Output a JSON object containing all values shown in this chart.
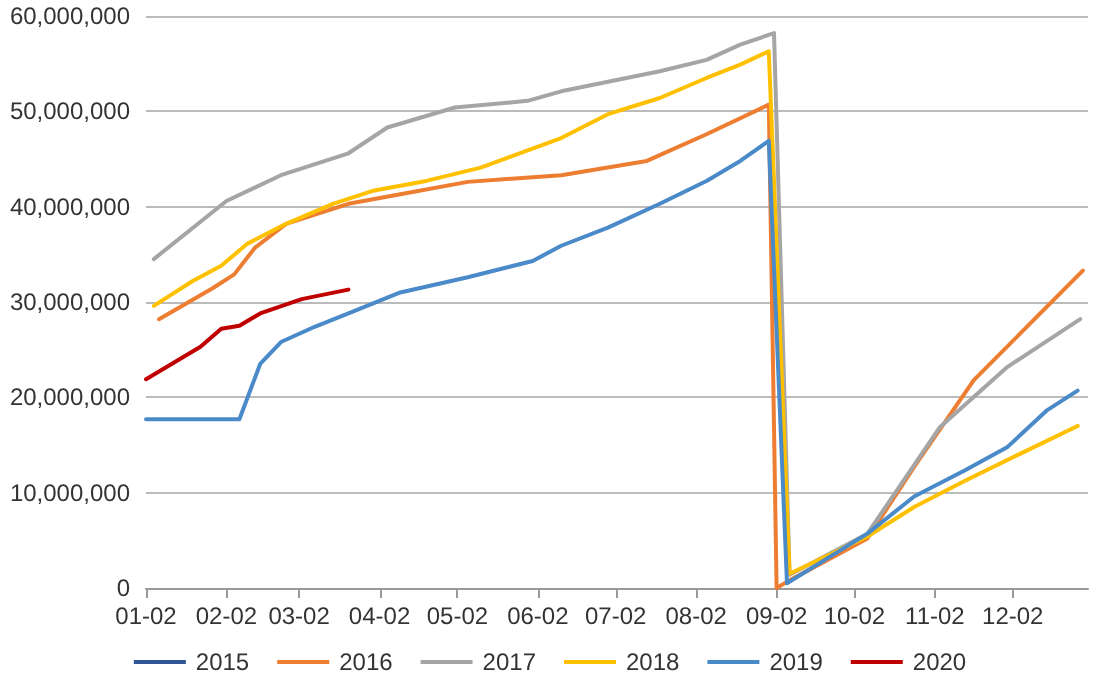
{
  "chart_data": {
    "type": "line",
    "xlim": [
      "--01-02",
      "--12-31"
    ],
    "xticks": [
      {
        "value": "--01-02",
        "label": "01-02"
      },
      {
        "value": "--02-02",
        "label": "02-02"
      },
      {
        "value": "--03-02",
        "label": "03-02"
      },
      {
        "value": "--04-02",
        "label": "04-02"
      },
      {
        "value": "--05-02",
        "label": "05-02"
      },
      {
        "value": "--06-02",
        "label": "06-02"
      },
      {
        "value": "--07-02",
        "label": "07-02"
      },
      {
        "value": "--08-02",
        "label": "08-02"
      },
      {
        "value": "--09-02",
        "label": "09-02"
      },
      {
        "value": "--10-02",
        "label": "10-02"
      },
      {
        "value": "--11-02",
        "label": "11-02"
      },
      {
        "value": "--12-02",
        "label": "12-02"
      }
    ],
    "ylim": [
      0,
      60000000
    ],
    "yticks": [
      0,
      {
        "value": 10000000,
        "label": "10,000,000"
      },
      {
        "value": 20000000,
        "label": "20,000,000"
      },
      {
        "value": 30000000,
        "label": "30,000,000"
      },
      {
        "value": 40000000,
        "label": "40,000,000"
      },
      {
        "value": 50000000,
        "label": "50,000,000"
      },
      {
        "value": 60000000,
        "label": "60,000,000"
      }
    ],
    "grid": "y",
    "legend": "bottom",
    "marker": "none",
    "line_style": "solid",
    "series": [
      {
        "name": "2015",
        "color": "#2f5597"
      },
      {
        "name": "2016",
        "color": "#ed7d31",
        "x": [
          "--01-07",
          "--01-28",
          "--02-05",
          "--02-13",
          "--02-25",
          "--03-21",
          "--04-10",
          "--05-06",
          "--06-11",
          "--07-14",
          "--08-06",
          "--08-30",
          "--09-02",
          "--09-07",
          "--10-07",
          "--10-25",
          "--11-17",
          "--12-10",
          "--12-29"
        ],
        "values": [
          28200000,
          31500000,
          32900000,
          35700000,
          38200000,
          40300000,
          41300000,
          42600000,
          43300000,
          44800000,
          47600000,
          50700000,
          0,
          800000,
          5200000,
          12700000,
          21800000,
          28100000,
          33300000
        ]
      },
      {
        "name": "2017",
        "color": "#a5a5a5",
        "x": [
          "--01-05",
          "--02-02",
          "--02-23",
          "--03-21",
          "--04-05",
          "--05-01",
          "--05-29",
          "--06-11",
          "--07-19",
          "--08-06",
          "--08-19",
          "--09-01",
          "--09-07",
          "--10-07",
          "--11-04",
          "--11-30",
          "--12-28"
        ],
        "values": [
          34500000,
          40600000,
          43300000,
          45600000,
          48300000,
          50400000,
          51100000,
          52100000,
          54200000,
          55400000,
          57000000,
          58200000,
          1400000,
          5700000,
          16900000,
          23200000,
          28200000
        ]
      },
      {
        "name": "2018",
        "color": "#ffc000",
        "x": [
          "--01-05",
          "--01-20",
          "--01-31",
          "--02-10",
          "--02-25",
          "--03-15",
          "--03-31",
          "--04-20",
          "--05-11",
          "--06-11",
          "--06-29",
          "--07-19",
          "--08-06",
          "--08-19",
          "--08-30",
          "--09-07",
          "--10-07",
          "--10-25",
          "--11-14",
          "--12-05",
          "--12-27"
        ],
        "values": [
          29600000,
          32200000,
          33800000,
          36100000,
          38200000,
          40300000,
          41700000,
          42700000,
          44100000,
          47200000,
          49700000,
          51400000,
          53500000,
          54900000,
          56300000,
          1500000,
          5400000,
          8500000,
          11300000,
          14100000,
          17000000
        ]
      },
      {
        "name": "2019",
        "color": "#4a8ac8",
        "x": [
          "--01-02",
          "--02-07",
          "--02-15",
          "--02-23",
          "--03-08",
          "--03-21",
          "--04-10",
          "--05-06",
          "--05-31",
          "--06-11",
          "--06-29",
          "--07-19",
          "--08-06",
          "--08-19",
          "--08-30",
          "--09-06",
          "--10-07",
          "--10-25",
          "--11-14",
          "--11-30",
          "--12-15",
          "--12-27"
        ],
        "values": [
          17700000,
          17700000,
          23500000,
          25800000,
          27400000,
          28800000,
          31000000,
          32600000,
          34300000,
          35900000,
          37800000,
          40300000,
          42700000,
          44800000,
          46900000,
          500000,
          5700000,
          9600000,
          12400000,
          14800000,
          18600000,
          20700000
        ]
      },
      {
        "name": "2020",
        "color": "#c00000",
        "x": [
          "--01-02",
          "--01-23",
          "--01-31",
          "--02-07",
          "--02-15",
          "--03-03",
          "--03-21"
        ],
        "values": [
          21900000,
          25300000,
          27200000,
          27500000,
          28800000,
          30300000,
          31300000
        ]
      }
    ]
  }
}
